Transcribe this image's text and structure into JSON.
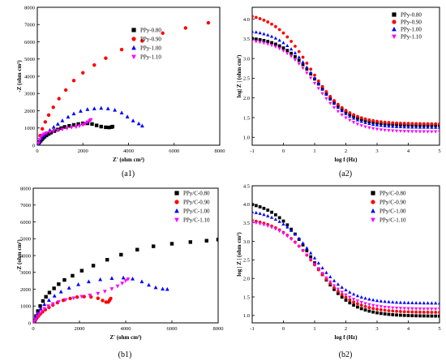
{
  "chart_data": [
    {
      "panel": "(a1)",
      "type": "scatter",
      "xlabel": "Z' (ohm cm²)",
      "ylabel": "-Z (ohm cm²)",
      "xlim": [
        0,
        8000
      ],
      "ylim": [
        0,
        8000
      ],
      "xticks": [
        0,
        2000,
        4000,
        6000,
        8000
      ],
      "yticks": [
        0,
        1000,
        2000,
        3000,
        4000,
        5000,
        6000,
        7000,
        8000
      ],
      "legend_position": "right",
      "series": [
        {
          "name": "PPy-0.80",
          "marker": "square",
          "color": "#000000",
          "points": [
            [
              50,
              80
            ],
            [
              100,
              180
            ],
            [
              150,
              260
            ],
            [
              200,
              340
            ],
            [
              250,
              410
            ],
            [
              320,
              490
            ],
            [
              400,
              570
            ],
            [
              500,
              650
            ],
            [
              600,
              730
            ],
            [
              750,
              820
            ],
            [
              900,
              910
            ],
            [
              1050,
              990
            ],
            [
              1200,
              1060
            ],
            [
              1400,
              1120
            ],
            [
              1600,
              1180
            ],
            [
              1800,
              1230
            ],
            [
              2000,
              1270
            ],
            [
              2200,
              1270
            ],
            [
              2400,
              1230
            ],
            [
              2600,
              1150
            ],
            [
              2800,
              1080
            ],
            [
              3000,
              1040
            ],
            [
              3150,
              1030
            ],
            [
              3250,
              1050
            ],
            [
              3300,
              1080
            ]
          ]
        },
        {
          "name": "PPy-0.90",
          "marker": "circle",
          "color": "#ff0000",
          "points": [
            [
              50,
              150
            ],
            [
              120,
              550
            ],
            [
              220,
              950
            ],
            [
              350,
              1350
            ],
            [
              500,
              1750
            ],
            [
              700,
              2200
            ],
            [
              950,
              2700
            ],
            [
              1250,
              3200
            ],
            [
              1600,
              3750
            ],
            [
              2000,
              4200
            ],
            [
              2500,
              4650
            ],
            [
              3000,
              5050
            ],
            [
              3700,
              5550
            ],
            [
              4600,
              6050
            ],
            [
              5500,
              6500
            ],
            [
              6500,
              6800
            ],
            [
              7500,
              7100
            ]
          ]
        },
        {
          "name": "PPy-1.00",
          "marker": "triangle",
          "color": "#0000ff",
          "points": [
            [
              50,
              100
            ],
            [
              100,
              250
            ],
            [
              180,
              400
            ],
            [
              280,
              550
            ],
            [
              400,
              700
            ],
            [
              550,
              870
            ],
            [
              720,
              1050
            ],
            [
              900,
              1230
            ],
            [
              1100,
              1430
            ],
            [
              1350,
              1640
            ],
            [
              1600,
              1830
            ],
            [
              1900,
              1980
            ],
            [
              2200,
              2080
            ],
            [
              2500,
              2120
            ],
            [
              2800,
              2150
            ],
            [
              3100,
              2120
            ],
            [
              3400,
              2040
            ],
            [
              3700,
              1880
            ],
            [
              3950,
              1650
            ],
            [
              4200,
              1420
            ],
            [
              4450,
              1250
            ],
            [
              4600,
              1120
            ]
          ]
        },
        {
          "name": "PPy-1.10",
          "marker": "triangle-down",
          "color": "#ff00ff",
          "points": [
            [
              50,
              120
            ],
            [
              100,
              320
            ],
            [
              150,
              470
            ],
            [
              220,
              580
            ],
            [
              300,
              650
            ],
            [
              400,
              700
            ],
            [
              550,
              760
            ],
            [
              700,
              800
            ],
            [
              900,
              860
            ],
            [
              1100,
              920
            ],
            [
              1300,
              980
            ],
            [
              1500,
              1030
            ],
            [
              1700,
              1060
            ],
            [
              1850,
              1110
            ],
            [
              2000,
              1180
            ],
            [
              2100,
              1250
            ],
            [
              2200,
              1340
            ],
            [
              2300,
              1430
            ],
            [
              2350,
              1480
            ]
          ]
        }
      ]
    },
    {
      "panel": "(a2)",
      "type": "scatter",
      "xlabel": "log f (Hz)",
      "ylabel": "log| Z | (ohm cm²)",
      "xlim": [
        -1,
        5
      ],
      "ylim": [
        0.8,
        4.3
      ],
      "xticks": [
        -1,
        0,
        1,
        2,
        3,
        4,
        5
      ],
      "yticks": [
        1.0,
        1.5,
        2.0,
        2.5,
        3.0,
        3.5,
        4.0
      ],
      "legend_position": "top-right",
      "curves": [
        {
          "name": "PPy-0.80",
          "marker": "square",
          "color": "#000000",
          "high": 3.56,
          "low": 1.3,
          "f0": 1.05,
          "w": 0.55
        },
        {
          "name": "PPy-0.90",
          "marker": "circle",
          "color": "#ff0000",
          "high": 4.18,
          "low": 1.34,
          "f0": 0.85,
          "w": 0.58
        },
        {
          "name": "PPy-1.00",
          "marker": "triangle",
          "color": "#0000ff",
          "high": 3.75,
          "low": 1.25,
          "f0": 1.0,
          "w": 0.55
        },
        {
          "name": "PPy-1.10",
          "marker": "triangle-down",
          "color": "#ff00ff",
          "high": 3.5,
          "low": 1.14,
          "f0": 1.05,
          "w": 0.55
        }
      ]
    },
    {
      "panel": "(b1)",
      "type": "scatter",
      "xlabel": "Z' (ohm cm²)",
      "ylabel": "-Z (ohm cm²)",
      "xlim": [
        0,
        8000
      ],
      "ylim": [
        0,
        8000
      ],
      "xticks": [
        0,
        2000,
        4000,
        6000,
        8000
      ],
      "yticks": [
        0,
        1000,
        2000,
        3000,
        4000,
        5000,
        6000,
        7000,
        8000
      ],
      "legend_position": "top-right",
      "series": [
        {
          "name": "PPy/C-0.80",
          "marker": "square",
          "color": "#000000",
          "points": [
            [
              50,
              120
            ],
            [
              120,
              400
            ],
            [
              200,
              700
            ],
            [
              300,
              1000
            ],
            [
              420,
              1300
            ],
            [
              550,
              1550
            ],
            [
              700,
              1800
            ],
            [
              900,
              2050
            ],
            [
              1100,
              2300
            ],
            [
              1350,
              2550
            ],
            [
              1700,
              2800
            ],
            [
              2100,
              3100
            ],
            [
              2600,
              3400
            ],
            [
              3200,
              3750
            ],
            [
              3800,
              4050
            ],
            [
              4500,
              4350
            ],
            [
              5200,
              4550
            ],
            [
              6000,
              4700
            ],
            [
              6800,
              4800
            ],
            [
              7500,
              4880
            ],
            [
              8000,
              4950
            ]
          ]
        },
        {
          "name": "PPy/C-0.90",
          "marker": "circle",
          "color": "#ff0000",
          "points": [
            [
              50,
              80
            ],
            [
              100,
              180
            ],
            [
              150,
              280
            ],
            [
              220,
              400
            ],
            [
              300,
              520
            ],
            [
              400,
              650
            ],
            [
              520,
              780
            ],
            [
              680,
              920
            ],
            [
              850,
              1060
            ],
            [
              1050,
              1200
            ],
            [
              1300,
              1340
            ],
            [
              1600,
              1450
            ],
            [
              1900,
              1530
            ],
            [
              2200,
              1560
            ],
            [
              2500,
              1540
            ],
            [
              2800,
              1460
            ],
            [
              3000,
              1330
            ],
            [
              3150,
              1230
            ],
            [
              3250,
              1240
            ],
            [
              3300,
              1340
            ],
            [
              3350,
              1450
            ]
          ]
        },
        {
          "name": "PPy/C-1.00",
          "marker": "triangle",
          "color": "#0000ff",
          "points": [
            [
              50,
              130
            ],
            [
              120,
              350
            ],
            [
              200,
              600
            ],
            [
              320,
              850
            ],
            [
              480,
              1100
            ],
            [
              680,
              1350
            ],
            [
              920,
              1600
            ],
            [
              1200,
              1850
            ],
            [
              1550,
              2080
            ],
            [
              1950,
              2280
            ],
            [
              2400,
              2450
            ],
            [
              2900,
              2580
            ],
            [
              3400,
              2650
            ],
            [
              3900,
              2680
            ],
            [
              4300,
              2620
            ],
            [
              4700,
              2450
            ],
            [
              5000,
              2250
            ],
            [
              5300,
              2100
            ],
            [
              5600,
              2020
            ],
            [
              5800,
              2000
            ]
          ]
        },
        {
          "name": "PPy/C-1.10",
          "marker": "triangle-down",
          "color": "#ff00ff",
          "points": [
            [
              50,
              90
            ],
            [
              100,
              220
            ],
            [
              170,
              380
            ],
            [
              250,
              520
            ],
            [
              350,
              680
            ],
            [
              480,
              840
            ],
            [
              650,
              1000
            ],
            [
              850,
              1130
            ],
            [
              1100,
              1250
            ],
            [
              1400,
              1370
            ],
            [
              1750,
              1470
            ],
            [
              2100,
              1560
            ],
            [
              2450,
              1640
            ],
            [
              2800,
              1740
            ],
            [
              3100,
              1870
            ],
            [
              3400,
              2020
            ],
            [
              3650,
              2180
            ],
            [
              3850,
              2350
            ],
            [
              4000,
              2500
            ],
            [
              4100,
              2600
            ]
          ]
        }
      ]
    },
    {
      "panel": "(b2)",
      "type": "scatter",
      "xlabel": "log f (Hz)",
      "ylabel": "log | Z | (ohm cm²)",
      "xlim": [
        -1,
        5
      ],
      "ylim": [
        0.8,
        4.5
      ],
      "xticks": [
        -1,
        0,
        1,
        2,
        3,
        4,
        5
      ],
      "yticks": [
        1.0,
        1.5,
        2.0,
        2.5,
        3.0,
        3.5,
        4.0,
        4.5
      ],
      "legend_position": "top-right",
      "curves": [
        {
          "name": "PPy/C-0.80",
          "marker": "square",
          "color": "#000000",
          "high": 4.12,
          "low": 0.98,
          "f0": 0.9,
          "w": 0.6
        },
        {
          "name": "PPy/C-0.90",
          "marker": "circle",
          "color": "#ff0000",
          "high": 3.65,
          "low": 1.08,
          "f0": 1.0,
          "w": 0.6
        },
        {
          "name": "PPy/C-1.00",
          "marker": "triangle",
          "color": "#0000ff",
          "high": 3.88,
          "low": 1.33,
          "f0": 0.95,
          "w": 0.58
        },
        {
          "name": "PPy/C-1.10",
          "marker": "triangle-down",
          "color": "#ff00ff",
          "high": 3.6,
          "low": 1.17,
          "f0": 1.0,
          "w": 0.6
        }
      ]
    }
  ]
}
